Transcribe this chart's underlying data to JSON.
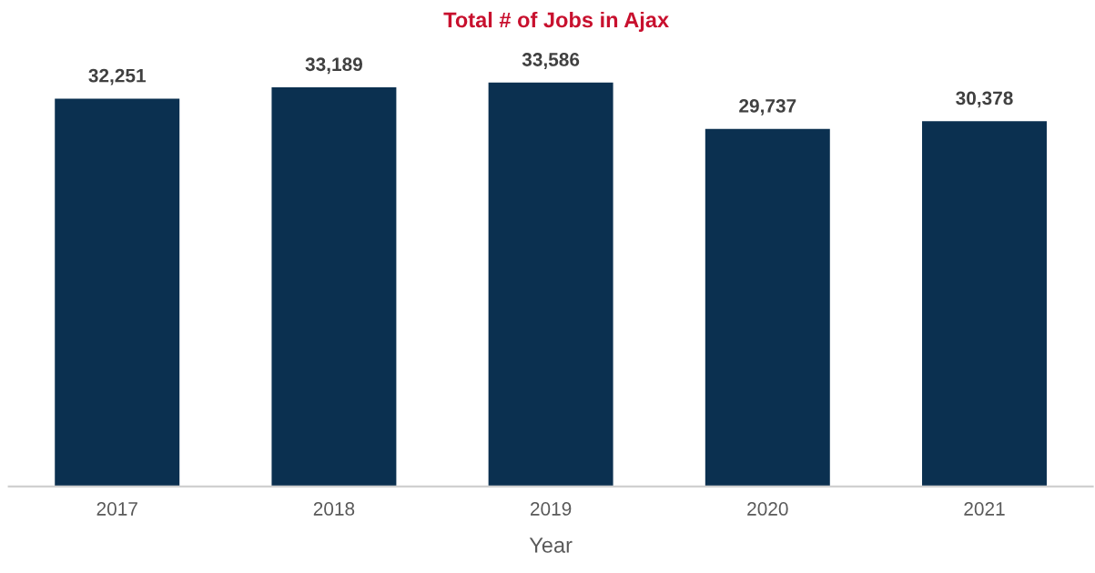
{
  "chart_data": {
    "type": "bar",
    "title": "Total # of Jobs in Ajax",
    "xlabel": "Year",
    "categories": [
      "2017",
      "2018",
      "2019",
      "2020",
      "2021"
    ],
    "values": [
      32251,
      33189,
      33586,
      29737,
      30378
    ],
    "color": "#0b3050",
    "value_labels": [
      "32,251",
      "33,189",
      "33,586",
      "29,737",
      "30,378"
    ],
    "tick_labels": "x",
    "grid": false,
    "legend": false
  }
}
